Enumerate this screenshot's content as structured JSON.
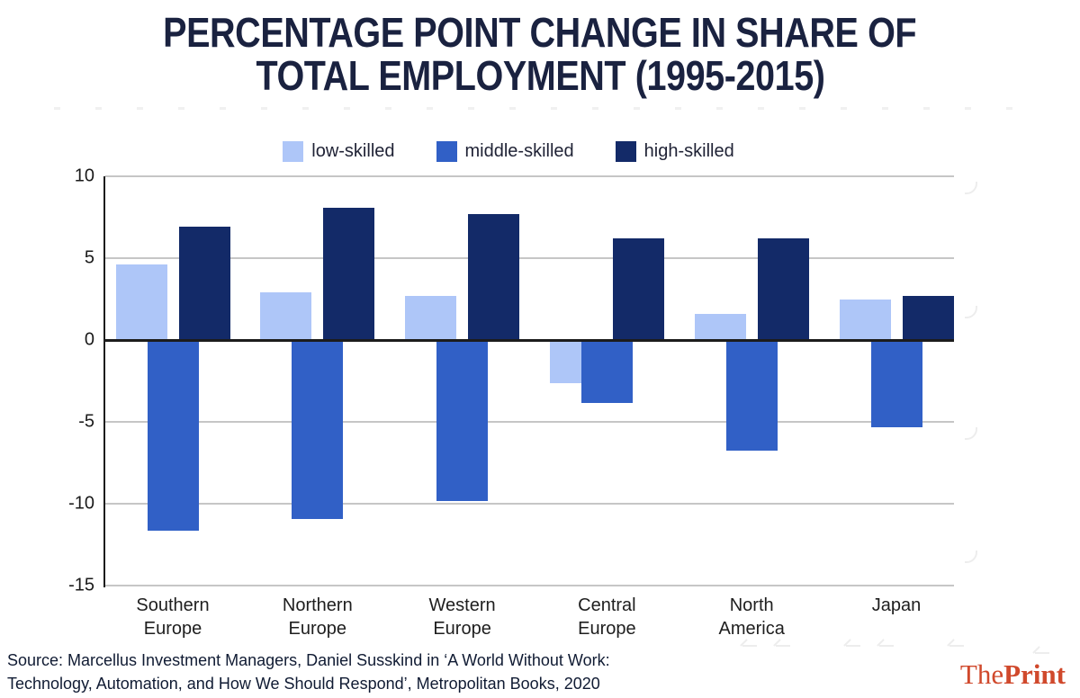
{
  "title": {
    "line1": "PERCENTAGE POINT CHANGE IN SHARE OF",
    "line2": "TOTAL EMPLOYMENT (1995-2015)",
    "color": "#1a2240"
  },
  "chart_data": {
    "type": "bar",
    "title": "PERCENTAGE POINT CHANGE IN SHARE OF TOTAL EMPLOYMENT (1995-2015)",
    "categories": [
      "Southern Europe",
      "Northern Europe",
      "Western Europe",
      "Central Europe",
      "North America",
      "Japan"
    ],
    "series": [
      {
        "name": "low-skilled",
        "color": "#aec6f8",
        "values": [
          4.6,
          2.9,
          2.7,
          -2.6,
          1.6,
          2.5
        ]
      },
      {
        "name": "middle-skilled",
        "color": "#3160c6",
        "values": [
          -11.6,
          -10.9,
          -9.8,
          -3.8,
          -6.7,
          -5.3
        ]
      },
      {
        "name": "high-skilled",
        "color": "#132a68",
        "values": [
          6.9,
          8.1,
          7.7,
          6.2,
          6.2,
          2.7
        ]
      }
    ],
    "xlabel": "",
    "ylabel": "",
    "ylim": [
      -15,
      10
    ],
    "yticks": [
      10,
      5,
      0,
      -5,
      -10,
      -15
    ],
    "grid": true,
    "legend_position": "top",
    "axis_color": "#1c1c1c",
    "gridline_color": "#c6c6c6"
  },
  "footer": {
    "source_line1": "Source: Marcellus Investment Managers, Daniel Susskind in ‘A World Without Work:",
    "source_line2": "Technology, Automation, and How We Should Respond’, Metropolitan Books, 2020",
    "logo_the": "The",
    "logo_print": "Print",
    "logo_color": "#d0492c"
  }
}
